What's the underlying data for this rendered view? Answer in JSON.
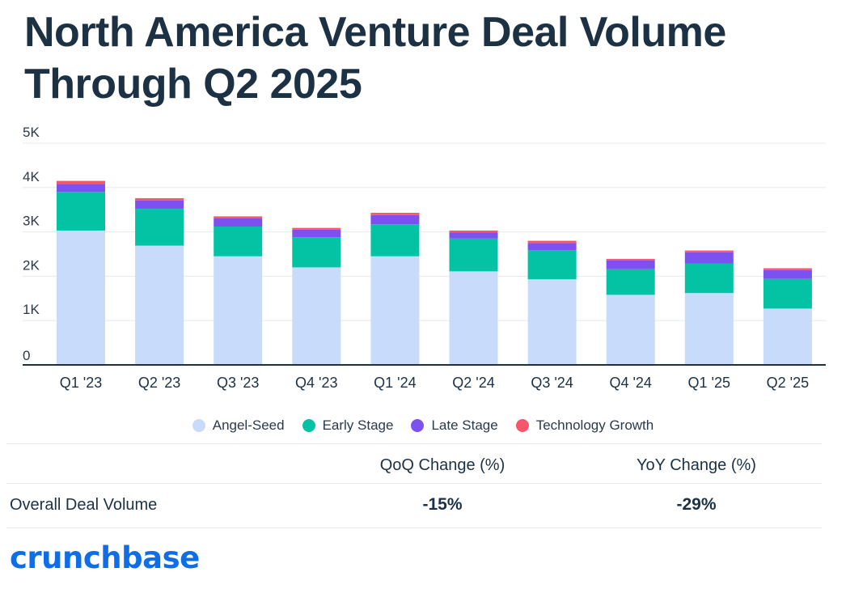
{
  "title": "North America Venture Deal Volume Through Q2 2025",
  "chart_data": {
    "type": "bar",
    "stacked": true,
    "title": "North America Venture Deal Volume Through Q2 2025",
    "xlabel": "",
    "ylabel": "",
    "ylim": [
      0,
      5000
    ],
    "yticks": [
      0,
      1000,
      2000,
      3000,
      4000,
      5000
    ],
    "ytick_labels": [
      "0",
      "1K",
      "2K",
      "3K",
      "4K",
      "5K"
    ],
    "grid": true,
    "legend_position": "bottom",
    "categories": [
      "Q1 '23",
      "Q2 '23",
      "Q3 '23",
      "Q4 '23",
      "Q1 '24",
      "Q2 '24",
      "Q3 '24",
      "Q4 '24",
      "Q1 '25",
      "Q2 '25"
    ],
    "series": [
      {
        "name": "Angel-Seed",
        "color": "#c9dbfa",
        "values": [
          3030,
          2690,
          2450,
          2200,
          2450,
          2110,
          1930,
          1580,
          1620,
          1270
        ]
      },
      {
        "name": "Early Stage",
        "color": "#04c3a5",
        "values": [
          870,
          830,
          670,
          680,
          720,
          740,
          660,
          580,
          670,
          670
        ]
      },
      {
        "name": "Late Stage",
        "color": "#7b52f0",
        "values": [
          180,
          190,
          190,
          170,
          210,
          140,
          160,
          200,
          250,
          200
        ]
      },
      {
        "name": "Technology Growth",
        "color": "#f7566a",
        "values": [
          70,
          50,
          40,
          40,
          50,
          40,
          50,
          30,
          40,
          40
        ]
      }
    ]
  },
  "table": {
    "headers": [
      "",
      "QoQ Change (%)",
      "YoY Change (%)"
    ],
    "rows": [
      {
        "label": "Overall Deal Volume",
        "qoq": "-15%",
        "yoy": "-29%"
      }
    ]
  },
  "brand": "crunchbase",
  "colors": {
    "title": "#1c3144",
    "brand": "#0f6ee6",
    "grid": "#e6e8ec",
    "axis": "#1c3144"
  }
}
